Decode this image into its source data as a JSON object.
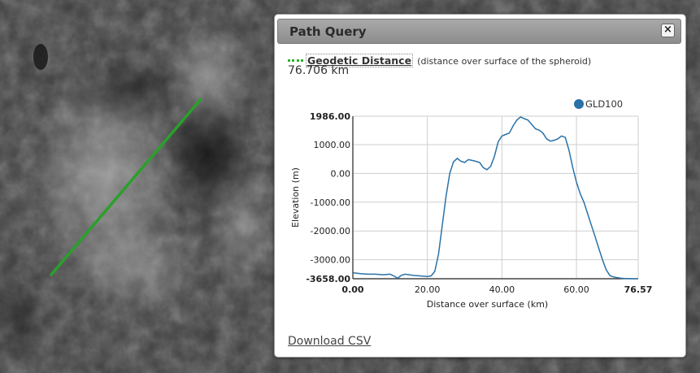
{
  "panel": {
    "title": "Path Query",
    "close_label": "×",
    "distance_label": "Geodetic Distance",
    "distance_description": "(distance over surface of the spheroid)",
    "distance_value": "76.706 km",
    "download_label": "Download CSV",
    "path_color": "#2db22d"
  },
  "chart_data": {
    "type": "line",
    "xlabel": "Distance over surface (km)",
    "ylabel": "Elevation (m)",
    "xlim": [
      0,
      76.57
    ],
    "ylim": [
      -3658,
      1986
    ],
    "x_ticks": [
      "0.00",
      "20.00",
      "40.00",
      "60.00",
      "76.57"
    ],
    "y_ticks": [
      "1986.00",
      "1000.00",
      "0.00",
      "-1000.00",
      "-2000.00",
      "-3000.00",
      "-3658.00"
    ],
    "grid": true,
    "legend_position": "top-right",
    "series": [
      {
        "name": "GLD100",
        "color": "#2a72a8",
        "x": [
          0,
          2,
          4,
          6,
          8,
          10,
          11,
          12,
          13,
          14,
          16,
          18,
          20,
          21,
          22,
          23,
          24,
          25,
          26,
          27,
          28,
          29,
          30,
          31,
          32,
          33,
          34,
          35,
          36,
          37,
          38,
          39,
          40,
          41,
          42,
          43,
          44,
          45,
          46,
          47,
          48,
          49,
          50,
          51,
          52,
          53,
          54,
          55,
          56,
          57,
          58,
          59,
          60,
          61,
          62,
          63,
          64,
          65,
          66,
          67,
          68,
          69,
          70,
          71,
          72,
          73,
          74,
          75,
          76.57
        ],
        "y": [
          -3450,
          -3480,
          -3500,
          -3500,
          -3520,
          -3500,
          -3560,
          -3640,
          -3540,
          -3500,
          -3540,
          -3560,
          -3580,
          -3560,
          -3400,
          -2800,
          -1800,
          -800,
          0,
          400,
          520,
          420,
          380,
          480,
          450,
          420,
          380,
          200,
          130,
          250,
          600,
          1100,
          1300,
          1350,
          1400,
          1650,
          1850,
          1960,
          1900,
          1850,
          1700,
          1550,
          1500,
          1400,
          1200,
          1120,
          1150,
          1200,
          1300,
          1250,
          800,
          200,
          -300,
          -700,
          -1000,
          -1400,
          -1800,
          -2200,
          -2600,
          -3000,
          -3350,
          -3550,
          -3600,
          -3620,
          -3640,
          -3650,
          -3650,
          -3658,
          -3658
        ]
      }
    ]
  }
}
